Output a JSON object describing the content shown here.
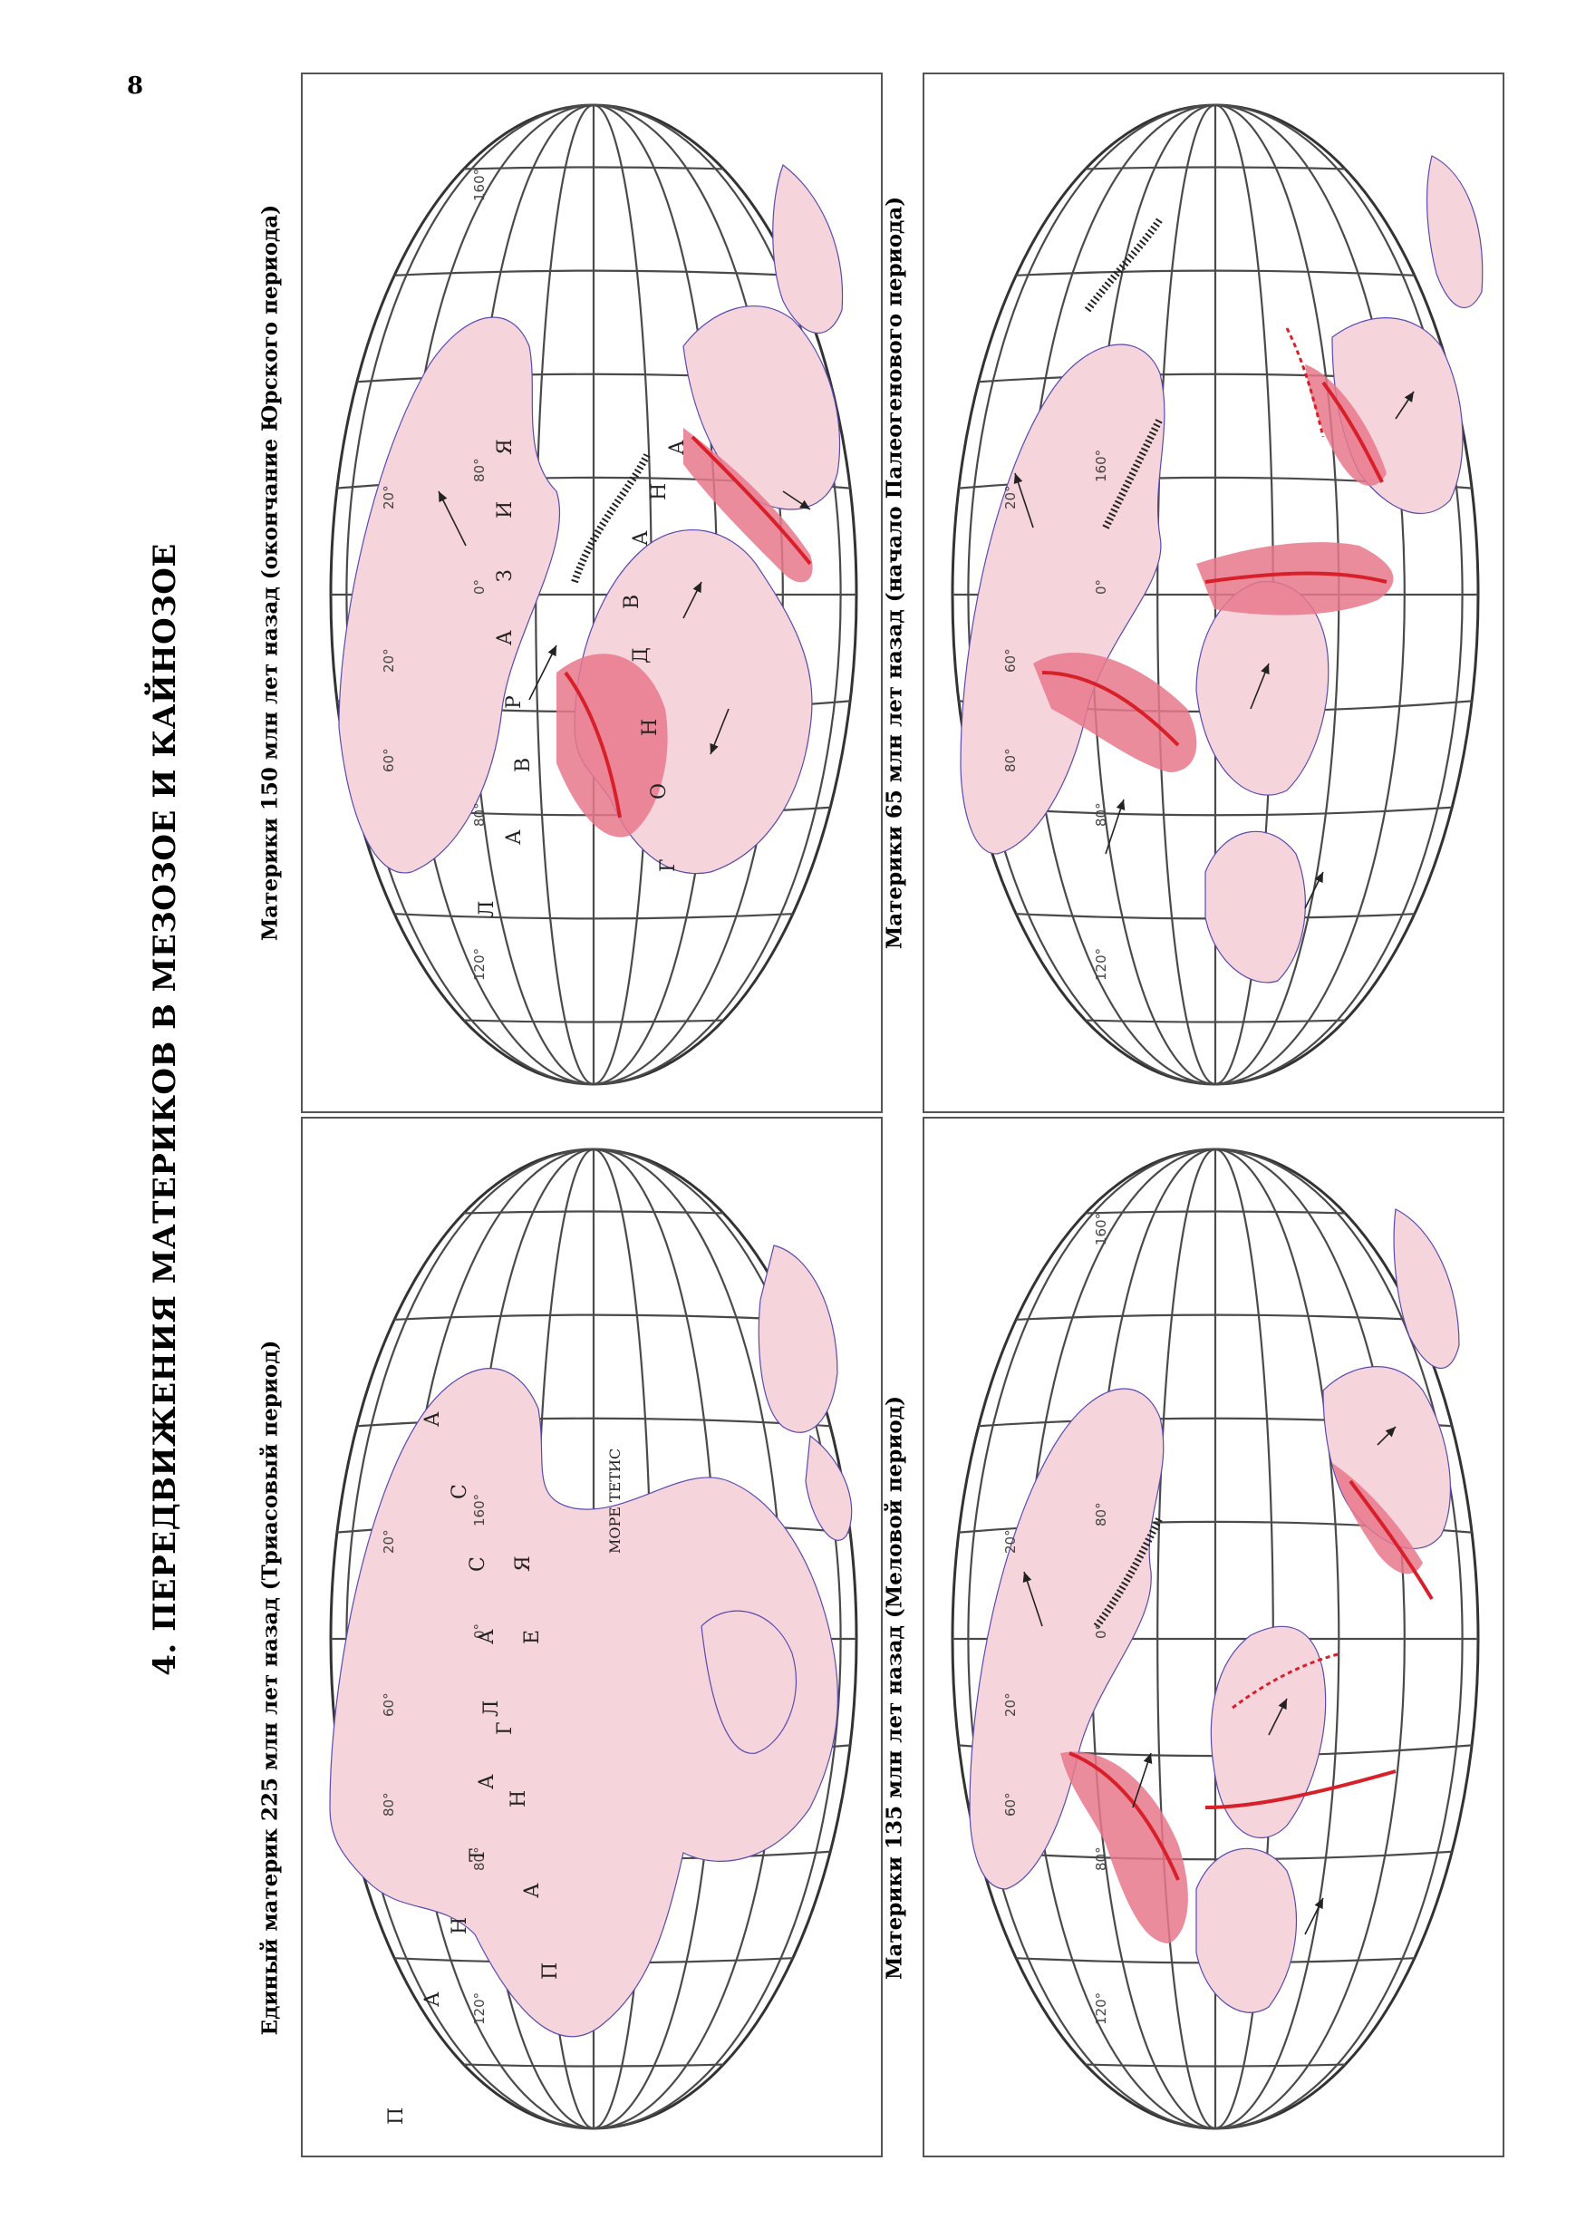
{
  "page_number": "8",
  "title": "4. ПЕРЕДВИЖЕНИЯ МАТЕРИКОВ В МЕЗОЗОЕ И КАЙНОЗОЕ",
  "maps": [
    {
      "id": "triassic",
      "caption": "Единый материк 225 млн лет назад (Триасовый период)",
      "degree_labels": [
        "120°",
        "80°",
        "0°",
        "20°",
        "60°",
        "80°",
        "160°"
      ],
      "region_letters": [
        "П",
        "А",
        "Н",
        "Т",
        "А",
        "Л",
        "А",
        "С",
        "С",
        "А"
      ],
      "land_letters": [
        "П",
        "А",
        "Н",
        "Г",
        "Е",
        "Я"
      ],
      "sea_label": "МОРЕ ТЕТИС"
    },
    {
      "id": "jurassic",
      "caption": "Материки 150 млн лет назад (окончание Юрского периода)",
      "degree_labels": [
        "120°",
        "80°",
        "0°",
        "20°",
        "20°",
        "60°",
        "80°",
        "160°"
      ],
      "laurasia_letters": [
        "Л",
        "А",
        "В",
        "Р",
        "А",
        "З",
        "И",
        "Я"
      ],
      "gondwana_letters": [
        "Г",
        "О",
        "Н",
        "Д",
        "В",
        "А",
        "Н",
        "А"
      ]
    },
    {
      "id": "cretaceous",
      "caption": "Материки 135 млн лет назад (Меловой период)",
      "degree_labels": [
        "120°",
        "80°",
        "0°",
        "20°",
        "20°",
        "60°",
        "80°",
        "160°"
      ]
    },
    {
      "id": "paleogene",
      "caption": "Материки 65 млн лет назад (начало Палеогенового периода)",
      "degree_labels": [
        "120°",
        "80°",
        "0°",
        "20°",
        "60°",
        "80°",
        "160°"
      ]
    }
  ],
  "colors": {
    "land": "#f6d4dc",
    "rift_zone": "#e8788c",
    "ridge": "#d8202a",
    "coastline": "#5a4ab0",
    "graticule": "#4a4a4a"
  }
}
